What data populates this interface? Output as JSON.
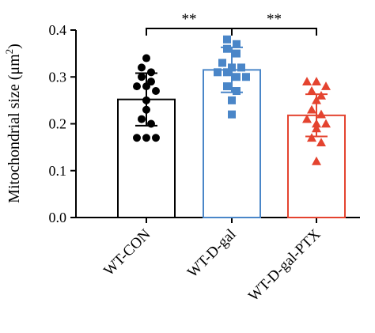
{
  "chart_data": {
    "type": "bar",
    "ylabel_main": "Mitochondrial size (μm",
    "ylabel_sup": "2",
    "ylabel_tail": ")",
    "ylim": [
      0,
      0.4
    ],
    "yticks": [
      "0.0",
      "0.1",
      "0.2",
      "0.3",
      "0.4"
    ],
    "categories": [
      "WT-CON",
      "WT-D-gal",
      "WT-D-gal-PTX"
    ],
    "series": [
      {
        "category": "WT-CON",
        "mean": 0.252,
        "sd": 0.056,
        "color": "#000000",
        "marker": "circle",
        "points": [
          0.34,
          0.32,
          0.31,
          0.3,
          0.29,
          0.28,
          0.28,
          0.27,
          0.25,
          0.23,
          0.21,
          0.2,
          0.17,
          0.17,
          0.17
        ]
      },
      {
        "category": "WT-D-gal",
        "mean": 0.315,
        "sd": 0.048,
        "color": "#4a86c8",
        "marker": "square",
        "points": [
          0.38,
          0.37,
          0.36,
          0.35,
          0.33,
          0.32,
          0.32,
          0.31,
          0.31,
          0.3,
          0.3,
          0.28,
          0.27,
          0.25,
          0.22
        ]
      },
      {
        "category": "WT-D-gal-PTX",
        "mean": 0.218,
        "sd": 0.045,
        "color": "#e4432f",
        "marker": "triangle",
        "points": [
          0.29,
          0.29,
          0.28,
          0.27,
          0.26,
          0.25,
          0.23,
          0.22,
          0.21,
          0.2,
          0.2,
          0.19,
          0.17,
          0.16,
          0.12
        ]
      }
    ],
    "significance": [
      {
        "from": 0,
        "to": 1,
        "label": "**"
      },
      {
        "from": 1,
        "to": 2,
        "label": "**"
      }
    ]
  }
}
